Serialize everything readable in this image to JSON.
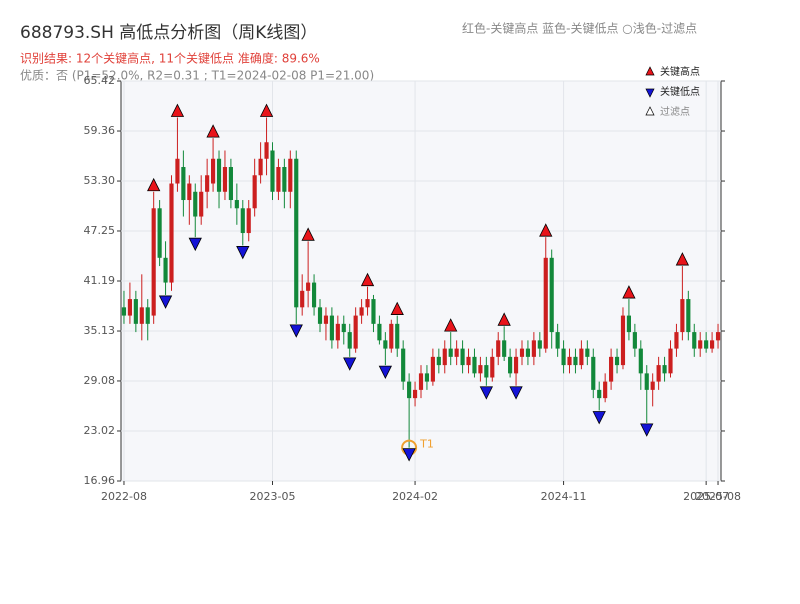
{
  "chart_data": {
    "type": "candlestick",
    "title": "688793.SH 高低点分析图（周K线图）",
    "header_note": "红色-关键高点    蓝色-关键低点   ○浅色-过滤点",
    "subtitle": "识别结果: 12个关键高点, 11个关键低点   准确度: 89.6%",
    "quality": "优质：否   (P1=52.0%, R2=0.31 ; T1=2024-02-08 P1=21.00)",
    "up_color": "#cc1f1f",
    "down_color": "#12883a",
    "high_color": "#e8141a",
    "low_color": "#1414d6",
    "filtered_color": "#ffffff",
    "annotation_color": "#f0a030",
    "legend": [
      {
        "name": "关键高点",
        "key": "high"
      },
      {
        "name": "关键低点",
        "key": "low"
      },
      {
        "name": "过滤点",
        "key": "filtered"
      }
    ],
    "ylim": [
      16.96,
      65.42
    ],
    "yticks": [
      16.96,
      23.02,
      29.08,
      35.13,
      41.19,
      47.25,
      {
        "value": 53.3,
        "label": "53.30"
      },
      59.36,
      65.42
    ],
    "grid": true,
    "candles": [
      {
        "date": "2022-08",
        "open": 38,
        "close": 37,
        "high": 40,
        "low": 36
      },
      {
        "open": 37,
        "close": 39,
        "high": 41,
        "low": 36
      },
      {
        "open": 39,
        "close": 36,
        "high": 40,
        "low": 35
      },
      {
        "open": 36,
        "close": 38,
        "high": 42,
        "low": 34
      },
      {
        "open": 38,
        "close": 36,
        "high": 39,
        "low": 34
      },
      {
        "open": 37,
        "close": 50,
        "high": 52,
        "low": 36,
        "key": "high"
      },
      {
        "open": 50,
        "close": 44,
        "high": 51,
        "low": 43
      },
      {
        "open": 44,
        "close": 41,
        "high": 46,
        "low": 39.5,
        "key": "low"
      },
      {
        "open": 41,
        "close": 53,
        "high": 54,
        "low": 40
      },
      {
        "open": 53,
        "close": 56,
        "high": 61,
        "low": 52,
        "key": "high"
      },
      {
        "open": 55,
        "close": 51,
        "high": 57,
        "low": 49
      },
      {
        "open": 51,
        "close": 53,
        "high": 54,
        "low": 48
      },
      {
        "open": 52,
        "close": 49,
        "high": 53,
        "low": 46.5,
        "key": "low"
      },
      {
        "open": 49,
        "close": 52,
        "high": 54,
        "low": 48
      },
      {
        "open": 52,
        "close": 54,
        "high": 56,
        "low": 50
      },
      {
        "open": 53,
        "close": 56,
        "high": 58.5,
        "low": 52,
        "key": "high"
      },
      {
        "open": 56,
        "close": 52,
        "high": 57,
        "low": 50
      },
      {
        "open": 52,
        "close": 55,
        "high": 57,
        "low": 51
      },
      {
        "open": 55,
        "close": 51,
        "high": 56,
        "low": 50
      },
      {
        "open": 51,
        "close": 50,
        "high": 53,
        "low": 48
      },
      {
        "open": 50,
        "close": 47,
        "high": 51,
        "low": 45.5,
        "key": "low"
      },
      {
        "open": 47,
        "close": 50,
        "high": 51,
        "low": 46
      },
      {
        "open": 50,
        "close": 54,
        "high": 56,
        "low": 49
      },
      {
        "open": 54,
        "close": 56,
        "high": 58,
        "low": 53
      },
      {
        "open": 56,
        "close": 58,
        "high": 61,
        "low": 54,
        "key": "high"
      },
      {
        "date": "2023-05",
        "open": 57,
        "close": 52,
        "high": 58,
        "low": 51
      },
      {
        "open": 52,
        "close": 55,
        "high": 56,
        "low": 51
      },
      {
        "open": 55,
        "close": 52,
        "high": 56,
        "low": 50
      },
      {
        "open": 52,
        "close": 56,
        "high": 57,
        "low": 50
      },
      {
        "open": 56,
        "close": 38,
        "high": 57,
        "low": 36,
        "key": "low"
      },
      {
        "open": 38,
        "close": 40,
        "high": 42,
        "low": 37
      },
      {
        "open": 40,
        "close": 41,
        "high": 46,
        "low": 38,
        "key": "high"
      },
      {
        "open": 41,
        "close": 38,
        "high": 42,
        "low": 37
      },
      {
        "open": 38,
        "close": 36,
        "high": 39,
        "low": 35
      },
      {
        "open": 36,
        "close": 37,
        "high": 38,
        "low": 34
      },
      {
        "open": 37,
        "close": 34,
        "high": 38,
        "low": 33
      },
      {
        "open": 34,
        "close": 36,
        "high": 37,
        "low": 33
      },
      {
        "open": 36,
        "close": 35,
        "high": 37,
        "low": 33.5
      },
      {
        "open": 35,
        "close": 33,
        "high": 36,
        "low": 32,
        "key": "low"
      },
      {
        "open": 33,
        "close": 37,
        "high": 38,
        "low": 32.5
      },
      {
        "open": 37,
        "close": 38,
        "high": 39,
        "low": 36
      },
      {
        "open": 38,
        "close": 39,
        "high": 40.5,
        "low": 37,
        "key": "high"
      },
      {
        "open": 39,
        "close": 36,
        "high": 39.5,
        "low": 35
      },
      {
        "open": 36,
        "close": 34,
        "high": 37,
        "low": 33.5
      },
      {
        "open": 34,
        "close": 33,
        "high": 35,
        "low": 31,
        "key": "low"
      },
      {
        "open": 33,
        "close": 36,
        "high": 36.5,
        "low": 32.5
      },
      {
        "open": 36,
        "close": 33,
        "high": 37,
        "low": 32,
        "key": "high"
      },
      {
        "open": 33,
        "close": 29,
        "high": 34,
        "low": 28
      },
      {
        "open": 29,
        "close": 27,
        "high": 30,
        "low": 21,
        "key": "low",
        "annotation": "T1"
      },
      {
        "date": "2024-02",
        "open": 27,
        "close": 28,
        "high": 29,
        "low": 26
      },
      {
        "open": 28,
        "close": 30,
        "high": 31,
        "low": 27
      },
      {
        "open": 30,
        "close": 29,
        "high": 31,
        "low": 28
      },
      {
        "open": 29,
        "close": 32,
        "high": 33,
        "low": 28.5
      },
      {
        "open": 32,
        "close": 31,
        "high": 33,
        "low": 30
      },
      {
        "open": 31,
        "close": 33,
        "high": 34,
        "low": 30
      },
      {
        "open": 33,
        "close": 32,
        "high": 35,
        "low": 31,
        "key": "high"
      },
      {
        "open": 32,
        "close": 33,
        "high": 34,
        "low": 31
      },
      {
        "open": 33,
        "close": 31,
        "high": 34,
        "low": 30
      },
      {
        "open": 31,
        "close": 32,
        "high": 33,
        "low": 30
      },
      {
        "open": 32,
        "close": 30,
        "high": 33,
        "low": 29.5
      },
      {
        "open": 30,
        "close": 31,
        "high": 32,
        "low": 29
      },
      {
        "open": 31,
        "close": 29.5,
        "high": 32,
        "low": 28.5,
        "key": "low"
      },
      {
        "open": 29.5,
        "close": 32,
        "high": 33,
        "low": 29
      },
      {
        "open": 32,
        "close": 34,
        "high": 35,
        "low": 31
      },
      {
        "open": 34,
        "close": 32,
        "high": 35.7,
        "low": 31.5,
        "key": "high"
      },
      {
        "open": 32,
        "close": 30,
        "high": 33,
        "low": 29.5
      },
      {
        "open": 30,
        "close": 32,
        "high": 33,
        "low": 28.5,
        "key": "low"
      },
      {
        "open": 32,
        "close": 33,
        "high": 34,
        "low": 31
      },
      {
        "open": 33,
        "close": 32,
        "high": 34,
        "low": 31
      },
      {
        "open": 32,
        "close": 34,
        "high": 35,
        "low": 31
      },
      {
        "open": 34,
        "close": 33,
        "high": 35,
        "low": 32
      },
      {
        "open": 33,
        "close": 44,
        "high": 46.5,
        "low": 32.5,
        "key": "high"
      },
      {
        "open": 44,
        "close": 35,
        "high": 45,
        "low": 33
      },
      {
        "open": 35,
        "close": 33,
        "high": 36,
        "low": 32
      },
      {
        "date": "2024-11",
        "open": 33,
        "close": 31,
        "high": 34,
        "low": 30
      },
      {
        "open": 31,
        "close": 32,
        "high": 33,
        "low": 30
      },
      {
        "open": 32,
        "close": 31,
        "high": 33,
        "low": 30
      },
      {
        "open": 31,
        "close": 33,
        "high": 34,
        "low": 30.5
      },
      {
        "open": 33,
        "close": 32,
        "high": 34,
        "low": 31
      },
      {
        "open": 32,
        "close": 28,
        "high": 33,
        "low": 27
      },
      {
        "open": 28,
        "close": 27,
        "high": 29,
        "low": 25.5,
        "key": "low"
      },
      {
        "open": 27,
        "close": 29,
        "high": 30,
        "low": 26.5
      },
      {
        "open": 29,
        "close": 32,
        "high": 33,
        "low": 28
      },
      {
        "open": 32,
        "close": 31,
        "high": 33,
        "low": 30
      },
      {
        "open": 31,
        "close": 37,
        "high": 38,
        "low": 30.5
      },
      {
        "open": 37,
        "close": 35,
        "high": 39,
        "low": 34,
        "key": "high"
      },
      {
        "open": 35,
        "close": 33,
        "high": 36,
        "low": 32
      },
      {
        "open": 33,
        "close": 30,
        "high": 34,
        "low": 28
      },
      {
        "open": 30,
        "close": 28,
        "high": 31,
        "low": 24,
        "key": "low"
      },
      {
        "open": 28,
        "close": 29,
        "high": 30,
        "low": 26
      },
      {
        "open": 29,
        "close": 31,
        "high": 32,
        "low": 28
      },
      {
        "open": 31,
        "close": 30,
        "high": 32,
        "low": 29
      },
      {
        "open": 30,
        "close": 33,
        "high": 34,
        "low": 29.5
      },
      {
        "open": 33,
        "close": 35,
        "high": 36,
        "low": 32
      },
      {
        "open": 35,
        "close": 39,
        "high": 43,
        "low": 34,
        "key": "high"
      },
      {
        "open": 39,
        "close": 35,
        "high": 40,
        "low": 34
      },
      {
        "open": 35,
        "close": 33,
        "high": 36,
        "low": 32
      },
      {
        "open": 33,
        "close": 34,
        "high": 35,
        "low": 32
      },
      {
        "date": "2025-07",
        "open": 34,
        "close": 33,
        "high": 35,
        "low": 32.5
      },
      {
        "open": 33,
        "close": 34,
        "high": 35,
        "low": 32.5
      },
      {
        "date": "2025-08",
        "open": 34,
        "close": 35,
        "high": 36,
        "low": 33
      }
    ]
  }
}
